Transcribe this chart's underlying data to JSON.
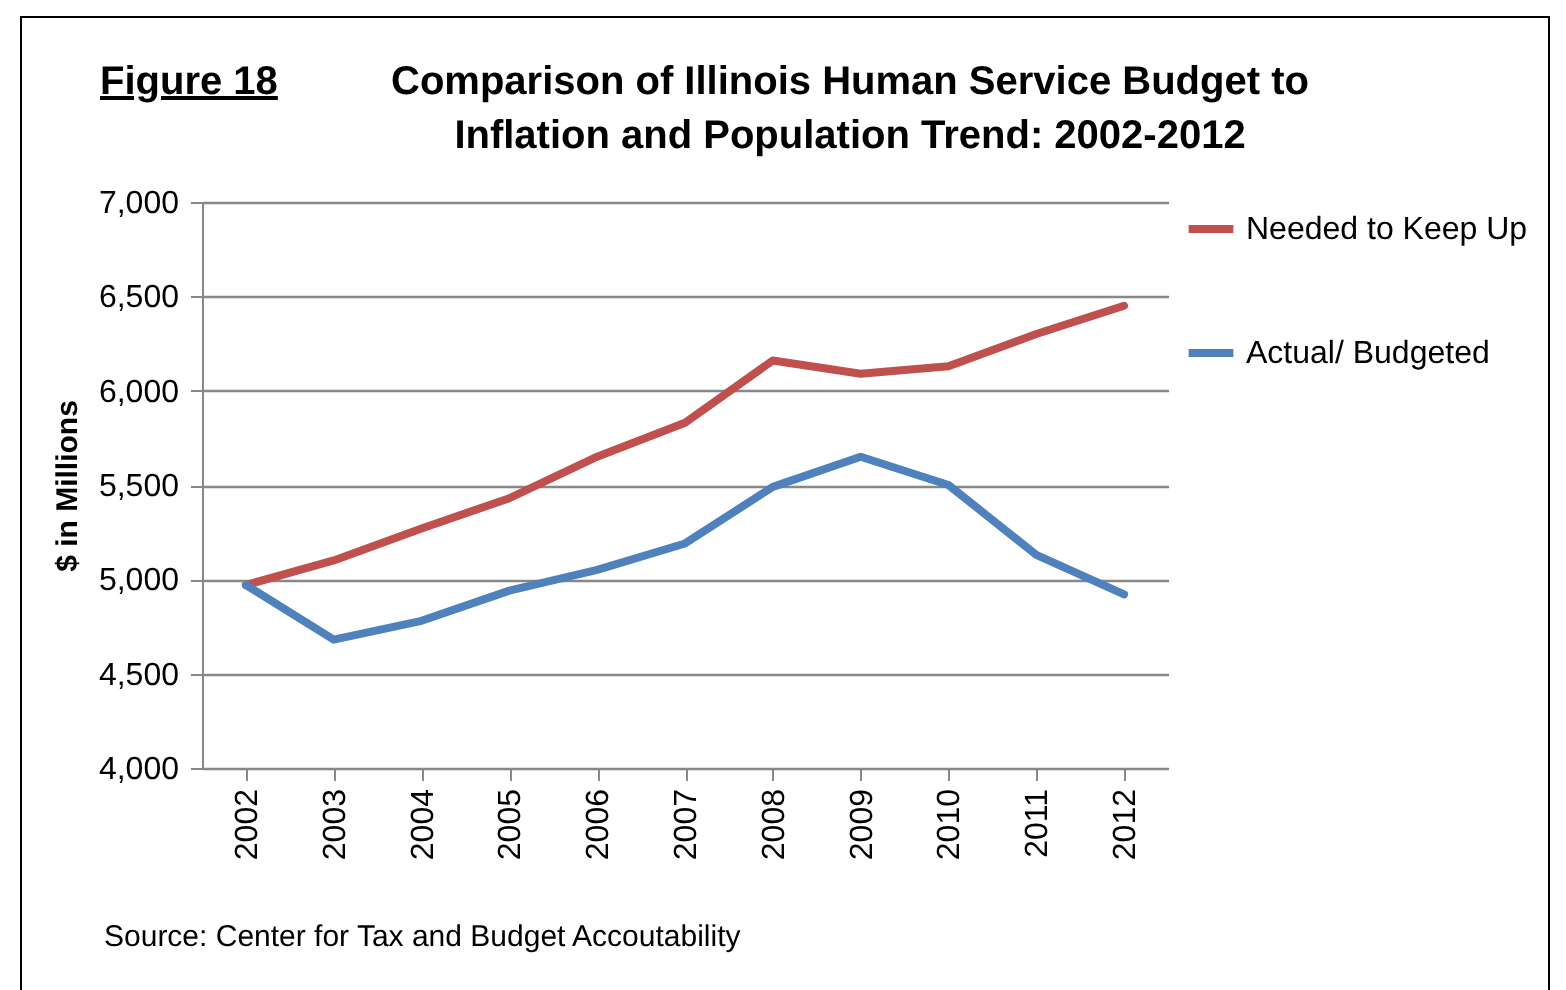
{
  "chart_data": {
    "type": "line",
    "title": "Comparison of Illinois Human Service Budget to  Inflation and Population Trend: 2002-2012",
    "ylabel": "$ in Millions",
    "annotations": [
      "Figure 18",
      "Source: Center for Tax and Budget Accoutability"
    ],
    "categories": [
      "2002",
      "2003",
      "2004",
      "2005",
      "2006",
      "2007",
      "2008",
      "2009",
      "2010",
      "2011",
      "2012"
    ],
    "series": [
      {
        "name": "Needed to Keep Up",
        "color": "#c0504d",
        "values": [
          4970,
          5100,
          5270,
          5430,
          5650,
          5830,
          6160,
          6090,
          6130,
          6300,
          6450
        ]
      },
      {
        "name": "Actual/ Budgeted",
        "color": "#4f81bd",
        "values": [
          4970,
          4680,
          4780,
          4940,
          5050,
          5190,
          5490,
          5650,
          5500,
          5130,
          4920
        ]
      }
    ],
    "ylim": [
      4000,
      7000
    ],
    "yticks": [
      {
        "value": 4000,
        "label": "4,000"
      },
      {
        "value": 4500,
        "label": "4,500"
      },
      {
        "value": 5000,
        "label": "5,000"
      },
      {
        "value": 5500,
        "label": "5,500"
      },
      {
        "value": 6000,
        "label": "6,000"
      },
      {
        "value": 6500,
        "label": "6,500"
      },
      {
        "value": 7000,
        "label": "7,000"
      }
    ],
    "grid": "y",
    "legend": "right",
    "line_style": "solid"
  }
}
